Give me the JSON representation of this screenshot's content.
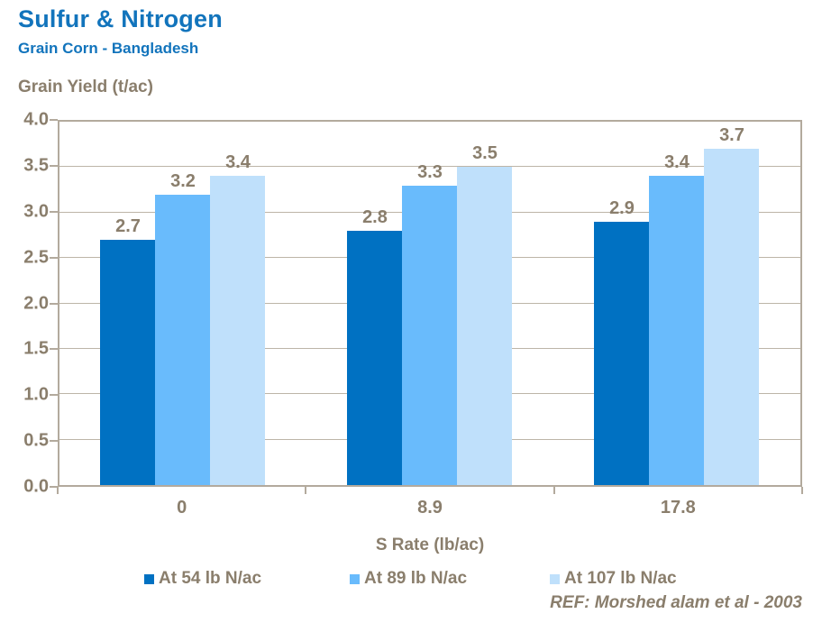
{
  "header": {
    "title": "Sulfur & Nitrogen",
    "subtitle": "Grain Corn - Bangladesh"
  },
  "chart_data": {
    "type": "bar",
    "title": "Sulfur & Nitrogen",
    "subtitle": "Grain Corn - Bangladesh",
    "ylabel": "Grain Yield (t/ac)",
    "xlabel": "S Rate (lb/ac)",
    "categories": [
      "0",
      "8.9",
      "17.8"
    ],
    "series": [
      {
        "name": "At 54 lb N/ac",
        "color": "#0071C2",
        "values": [
          2.7,
          2.8,
          2.9
        ]
      },
      {
        "name": "At 89 lb N/ac",
        "color": "#69BBFC",
        "values": [
          3.2,
          3.3,
          3.4
        ]
      },
      {
        "name": "At 107 lb N/ac",
        "color": "#BFE0FB",
        "values": [
          3.4,
          3.5,
          3.7
        ]
      }
    ],
    "ylim": [
      0,
      4
    ],
    "ytick_step": 0.5,
    "yticks": [
      "0.0",
      "0.5",
      "1.0",
      "1.5",
      "2.0",
      "2.5",
      "3.0",
      "3.5",
      "4.0"
    ],
    "grid": true,
    "data_labels": true,
    "legend_position": "bottom"
  },
  "footer": {
    "ref": "REF:  Morshed alam et al - 2003"
  },
  "colors": {
    "title_blue": "#1274BC",
    "chart_text": "#8A7E6C",
    "grid_line": "#BDB5A8",
    "plot_border": "#B3AA9D",
    "series": [
      "#0071C2",
      "#69BBFC",
      "#BFE0FB"
    ]
  }
}
